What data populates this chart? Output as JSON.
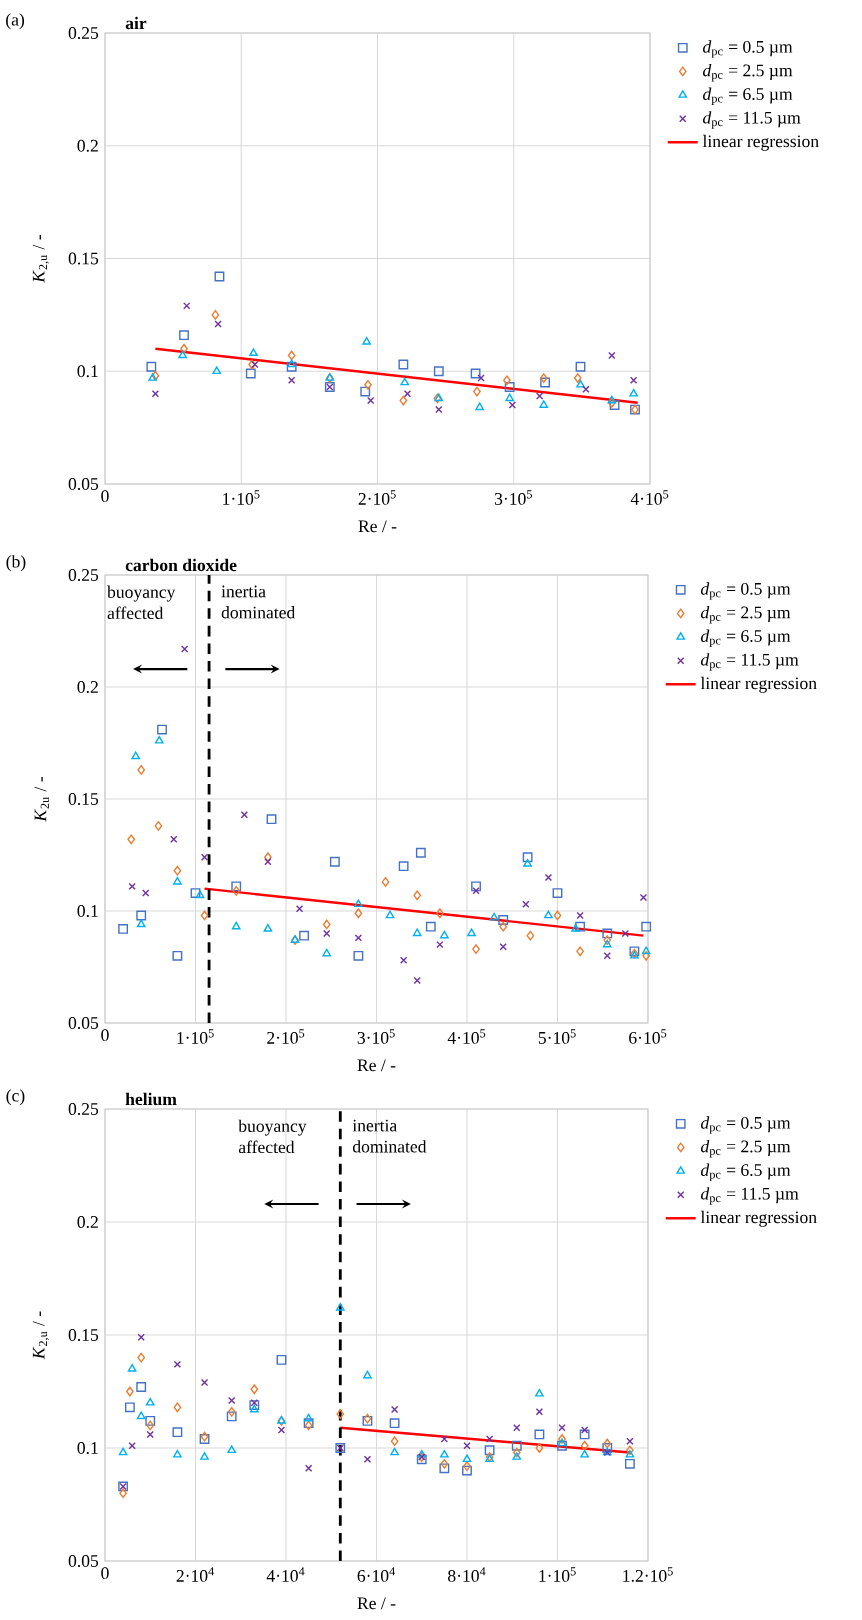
{
  "chart_data": [
    {
      "type": "scatter",
      "title": "air",
      "xlabel": "Re / -",
      "ylabel": "*K*$_{2,u}$ / -",
      "annotations": [
        "(a)"
      ],
      "xlim": [
        0,
        400000
      ],
      "ylim": [
        0.05,
        0.25
      ],
      "xticks": [
        0,
        {
          "value": 100000,
          "label": "1·10$^{5}$"
        },
        {
          "value": 200000,
          "label": "2·10$^{5}$"
        },
        {
          "value": 300000,
          "label": "3·10$^{5}$"
        },
        {
          "value": 400000,
          "label": "4·10$^{5}$"
        }
      ],
      "yticks": [
        0.05,
        0.1,
        0.15,
        0.2,
        0.25
      ],
      "grid": true,
      "legend": "right",
      "series": [
        {
          "name": "*d*$_{pc}$ = 0.5 µm",
          "color": "#4472c4",
          "marker": "square",
          "x": [
            34000,
            58000,
            84000,
            107000,
            137000,
            165000,
            191000,
            219000,
            245000,
            272000,
            297000,
            323000,
            349000,
            374000,
            389000
          ],
          "values": [
            0.102,
            0.116,
            0.142,
            0.099,
            0.102,
            0.093,
            0.091,
            0.103,
            0.1,
            0.099,
            0.093,
            0.095,
            0.102,
            0.085,
            0.083
          ]
        },
        {
          "name": "*d*$_{pc}$ = 2.5 µm",
          "color": "#ed7d31",
          "marker": "diamond",
          "x": [
            37000,
            58000,
            81000,
            108000,
            137000,
            165000,
            193000,
            219000,
            244000,
            273000,
            295000,
            322000,
            347000,
            372000,
            389000
          ],
          "values": [
            0.098,
            0.11,
            0.125,
            0.103,
            0.107,
            0.097,
            0.094,
            0.087,
            0.088,
            0.091,
            0.096,
            0.097,
            0.097,
            0.086,
            0.083
          ]
        },
        {
          "name": "*d*$_{pc}$ = 6.5 µm",
          "color": "#00b0f0",
          "marker": "triangle",
          "x": [
            35000,
            57000,
            82000,
            109000,
            137000,
            165000,
            192000,
            220000,
            245000,
            275000,
            297000,
            322000,
            349000,
            372000,
            388000
          ],
          "values": [
            0.097,
            0.107,
            0.1,
            0.108,
            0.103,
            0.097,
            0.113,
            0.095,
            0.088,
            0.084,
            0.088,
            0.085,
            0.094,
            0.087,
            0.09
          ]
        },
        {
          "name": "*d*$_{pc}$ = 11.5 µm",
          "color": "#7030a0",
          "marker": "cross",
          "x": [
            37000,
            60000,
            83000,
            110000,
            137000,
            165000,
            195000,
            222000,
            245000,
            276000,
            299000,
            319000,
            353000,
            372000,
            388000
          ],
          "values": [
            0.09,
            0.129,
            0.121,
            0.103,
            0.096,
            0.093,
            0.087,
            0.09,
            0.083,
            0.097,
            0.085,
            0.089,
            0.092,
            0.107,
            0.096
          ]
        },
        {
          "name": "linear regression",
          "color": "#ff0000",
          "type": "line",
          "marker": "none",
          "line_style": "solid",
          "x": [
            37000,
            391000
          ],
          "values": [
            0.11,
            0.086
          ]
        }
      ]
    },
    {
      "type": "scatter",
      "title": "carbon dioxide",
      "xlabel": "Re / -",
      "ylabel": "*K*$_{2u}$ / -",
      "annotations": [
        "(b)",
        "buoyancy affected",
        "inertia dominated"
      ],
      "xlim": [
        0,
        600000
      ],
      "ylim": [
        0.05,
        0.25
      ],
      "xticks": [
        0,
        {
          "value": 100000,
          "label": "1·10$^{5}$"
        },
        {
          "value": 200000,
          "label": "2·10$^{5}$"
        },
        {
          "value": 300000,
          "label": "3·10$^{5}$"
        },
        {
          "value": 400000,
          "label": "4·10$^{5}$"
        },
        {
          "value": 500000,
          "label": "5·10$^{5}$"
        },
        {
          "value": 600000,
          "label": "6·10$^{5}$"
        }
      ],
      "yticks": [
        0.05,
        0.1,
        0.15,
        0.2,
        0.25
      ],
      "grid": true,
      "legend": "right",
      "ref_lines": [
        {
          "axis": "x",
          "value": 115000,
          "color": "#000000",
          "line_style": "dashed"
        }
      ],
      "series": [
        {
          "name": "*d*$_{pc}$ = 0.5 µm",
          "color": "#4472c4",
          "marker": "square",
          "x": [
            20000,
            40000,
            63000,
            80000,
            100000,
            145000,
            184000,
            220000,
            254000,
            280000,
            330000,
            349000,
            360000,
            410000,
            440000,
            467000,
            500000,
            525000,
            555000,
            585000,
            598000
          ],
          "values": [
            0.092,
            0.098,
            0.181,
            0.08,
            0.108,
            0.111,
            0.141,
            0.089,
            0.122,
            0.08,
            0.12,
            0.126,
            0.093,
            0.111,
            0.096,
            0.124,
            0.108,
            0.093,
            0.09,
            0.082,
            0.093
          ]
        },
        {
          "name": "*d*$_{pc}$ = 2.5 µm",
          "color": "#ed7d31",
          "marker": "diamond",
          "x": [
            29000,
            40000,
            59000,
            80000,
            110000,
            145000,
            180000,
            210000,
            245000,
            280000,
            310000,
            345000,
            370000,
            410000,
            440000,
            470000,
            500000,
            525000,
            555000,
            585000,
            598000
          ],
          "values": [
            0.132,
            0.163,
            0.138,
            0.118,
            0.098,
            0.109,
            0.124,
            0.087,
            0.094,
            0.099,
            0.113,
            0.107,
            0.099,
            0.083,
            0.093,
            0.089,
            0.098,
            0.082,
            0.087,
            0.081,
            0.08
          ]
        },
        {
          "name": "*d*$_{pc}$ = 6.5 µm",
          "color": "#00b0f0",
          "marker": "triangle",
          "x": [
            34000,
            40000,
            60000,
            80000,
            105000,
            145000,
            180000,
            210000,
            245000,
            280000,
            315000,
            345000,
            375000,
            405000,
            430000,
            467000,
            490000,
            520000,
            555000,
            585000,
            598000
          ],
          "values": [
            0.169,
            0.094,
            0.176,
            0.113,
            0.107,
            0.093,
            0.092,
            0.087,
            0.081,
            0.103,
            0.098,
            0.09,
            0.089,
            0.09,
            0.097,
            0.121,
            0.098,
            0.092,
            0.085,
            0.08,
            0.082
          ]
        },
        {
          "name": "*d*$_{pc}$ = 11.5 µm",
          "color": "#7030a0",
          "marker": "cross",
          "x": [
            30000,
            45000,
            76000,
            88000,
            110000,
            154000,
            180000,
            215000,
            245000,
            280000,
            330000,
            345000,
            370000,
            410000,
            440000,
            465000,
            490000,
            525000,
            555000,
            575000,
            595000
          ],
          "values": [
            0.111,
            0.108,
            0.132,
            0.217,
            0.124,
            0.143,
            0.122,
            0.101,
            0.09,
            0.088,
            0.078,
            0.069,
            0.085,
            0.109,
            0.084,
            0.103,
            0.115,
            0.098,
            0.08,
            0.09,
            0.106
          ]
        },
        {
          "name": "linear regression",
          "color": "#ff0000",
          "type": "line",
          "marker": "none",
          "line_style": "solid",
          "x": [
            110000,
            595000
          ],
          "values": [
            0.11,
            0.089
          ]
        }
      ]
    },
    {
      "type": "scatter",
      "title": "helium",
      "xlabel": "Re / -",
      "ylabel": "*K*$_{2,u}$ / -",
      "annotations": [
        "(c)",
        "buoyancy affected",
        "inertia dominated"
      ],
      "xlim": [
        0,
        120000
      ],
      "ylim": [
        0.05,
        0.25
      ],
      "xticks": [
        0,
        {
          "value": 20000,
          "label": "2·10$^{4}$"
        },
        {
          "value": 40000,
          "label": "4·10$^{4}$"
        },
        {
          "value": 60000,
          "label": "6·10$^{4}$"
        },
        {
          "value": 80000,
          "label": "8·10$^{4}$"
        },
        {
          "value": 100000,
          "label": "1·10$^{5}$"
        },
        {
          "value": 120000,
          "label": "1.2·10$^{5}$"
        }
      ],
      "yticks": [
        0.05,
        0.1,
        0.15,
        0.2,
        0.25
      ],
      "grid": true,
      "legend": "right",
      "ref_lines": [
        {
          "axis": "x",
          "value": 52000,
          "color": "#000000",
          "line_style": "dashed"
        }
      ],
      "series": [
        {
          "name": "*d*$_{pc}$ = 0.5 µm",
          "color": "#4472c4",
          "marker": "square",
          "x": [
            4000,
            5500,
            8000,
            10000,
            16000,
            22000,
            28000,
            33000,
            39000,
            45000,
            52000,
            58000,
            64000,
            70000,
            75000,
            80000,
            85000,
            91000,
            96000,
            101000,
            106000,
            111000,
            116000
          ],
          "values": [
            0.083,
            0.118,
            0.127,
            0.112,
            0.107,
            0.104,
            0.114,
            0.119,
            0.139,
            0.111,
            0.1,
            0.112,
            0.111,
            0.095,
            0.091,
            0.09,
            0.099,
            0.101,
            0.106,
            0.101,
            0.106,
            0.1,
            0.093
          ]
        },
        {
          "name": "*d*$_{pc}$ = 2.5 µm",
          "color": "#ed7d31",
          "marker": "diamond",
          "x": [
            4000,
            5500,
            8000,
            10000,
            16000,
            22000,
            28000,
            33000,
            39000,
            45000,
            52000,
            58000,
            64000,
            70000,
            75000,
            80000,
            85000,
            91000,
            96000,
            101000,
            106000,
            111000,
            116000
          ],
          "values": [
            0.08,
            0.125,
            0.14,
            0.11,
            0.118,
            0.105,
            0.116,
            0.126,
            0.112,
            0.11,
            0.115,
            0.113,
            0.103,
            0.096,
            0.093,
            0.092,
            0.096,
            0.098,
            0.1,
            0.104,
            0.101,
            0.102,
            0.099
          ]
        },
        {
          "name": "*d*$_{pc}$ = 6.5 µm",
          "color": "#00b0f0",
          "marker": "triangle",
          "x": [
            4000,
            6000,
            8000,
            10000,
            16000,
            22000,
            28000,
            33000,
            39000,
            45000,
            52000,
            58000,
            64000,
            70000,
            75000,
            80000,
            85000,
            91000,
            96000,
            101000,
            106000,
            111000,
            116000
          ],
          "values": [
            0.098,
            0.135,
            0.114,
            0.12,
            0.097,
            0.096,
            0.099,
            0.117,
            0.112,
            0.113,
            0.162,
            0.132,
            0.098,
            0.097,
            0.097,
            0.095,
            0.095,
            0.096,
            0.124,
            0.102,
            0.097,
            0.098,
            0.097
          ]
        },
        {
          "name": "*d*$_{pc}$ = 11.5 µm",
          "color": "#7030a0",
          "marker": "cross",
          "x": [
            4000,
            6000,
            8000,
            10000,
            16000,
            22000,
            28000,
            33000,
            39000,
            45000,
            52000,
            58000,
            64000,
            70000,
            75000,
            80000,
            85000,
            91000,
            96000,
            101000,
            106000,
            111000,
            116000
          ],
          "values": [
            0.083,
            0.101,
            0.149,
            0.106,
            0.137,
            0.129,
            0.121,
            0.12,
            0.108,
            0.091,
            0.1,
            0.095,
            0.117,
            0.096,
            0.104,
            0.101,
            0.104,
            0.109,
            0.116,
            0.109,
            0.108,
            0.098,
            0.103
          ]
        },
        {
          "name": "linear regression",
          "color": "#ff0000",
          "type": "line",
          "marker": "none",
          "line_style": "solid",
          "x": [
            52000,
            116000
          ],
          "values": [
            0.109,
            0.098
          ]
        }
      ]
    }
  ]
}
